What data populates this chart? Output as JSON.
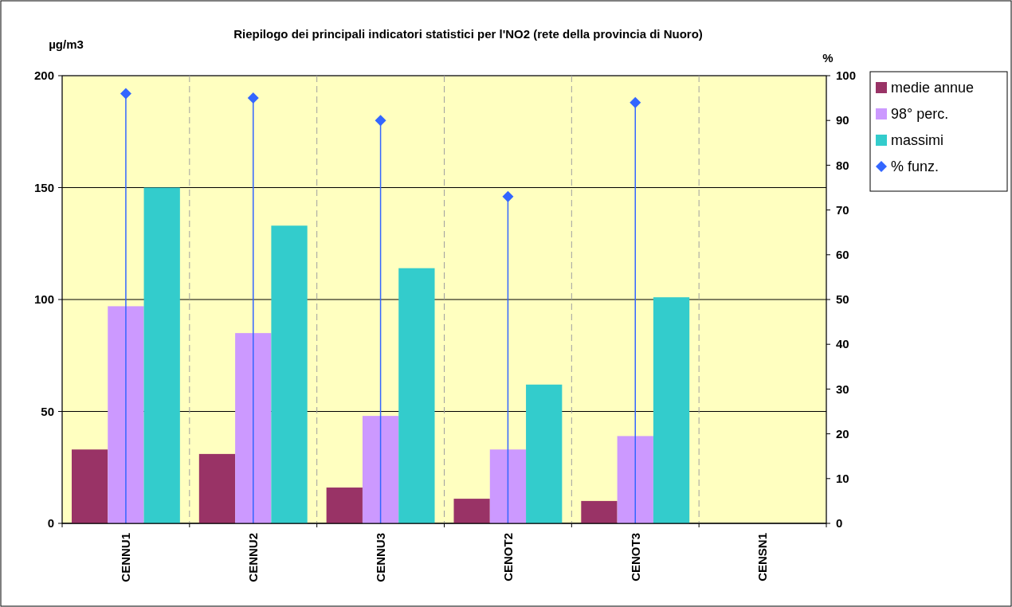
{
  "chart_data": {
    "type": "bar",
    "title": "Riepilogo dei principali indicatori statistici per l'NO2 (rete della provincia di Nuoro)",
    "ylabel": "µg/m3",
    "y2label": "%",
    "categories": [
      "CENNU1",
      "CENNU2",
      "CENNU3",
      "CENOT2",
      "CENOT3",
      "CENSN1"
    ],
    "series": [
      {
        "name": "medie annue",
        "color": "#993366",
        "values": [
          33,
          31,
          16,
          11,
          10,
          null
        ]
      },
      {
        "name": "98° perc.",
        "color": "#cc99ff",
        "values": [
          97,
          85,
          48,
          33,
          39,
          null
        ]
      },
      {
        "name": "massimi",
        "color": "#33cccc",
        "values": [
          150,
          133,
          114,
          62,
          101,
          null
        ]
      },
      {
        "name": "% funz.",
        "type": "lollipop",
        "axis": "y2",
        "color": "#3366ff",
        "marker": "diamond",
        "values": [
          96,
          95,
          90,
          73,
          94,
          null
        ]
      }
    ],
    "ylim": [
      0,
      200
    ],
    "yticks": [
      0,
      50,
      100,
      150,
      200
    ],
    "y2lim": [
      0,
      100
    ],
    "y2ticks": [
      0,
      10,
      20,
      30,
      40,
      50,
      60,
      70,
      80,
      90,
      100
    ],
    "grid": true,
    "legend": "right"
  }
}
